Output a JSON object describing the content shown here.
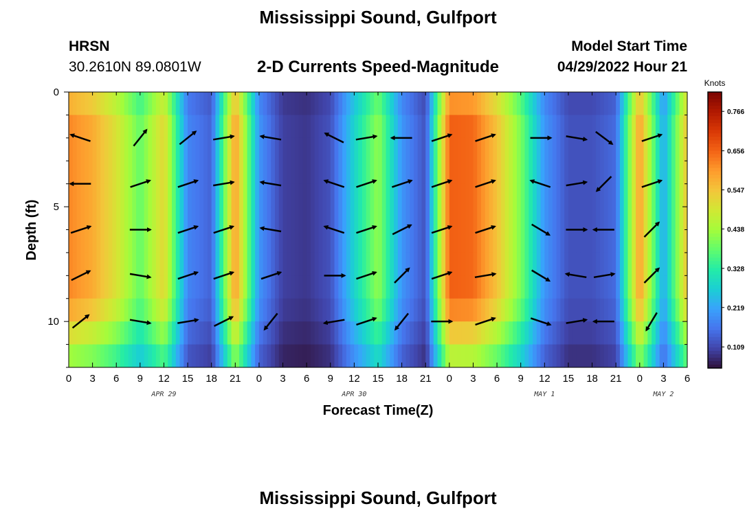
{
  "header": {
    "title": "Mississippi Sound, Gulfport",
    "station": "HRSN",
    "coords": "30.2610N  89.0801W",
    "subtitle": "2-D Currents Speed-Magnitude",
    "model_start_label": "Model Start Time",
    "model_start_value": "04/29/2022 Hour 21"
  },
  "footer": {
    "title": "Mississippi Sound, Gulfport"
  },
  "chart_data": {
    "type": "heatmap",
    "xlabel": "Forecast Time(Z)",
    "ylabel": "Depth (ft)",
    "x_range_hours": [
      0,
      78
    ],
    "y_range_ft": [
      0,
      12
    ],
    "x_tick_labels": [
      "0",
      "3",
      "6",
      "9",
      "12",
      "15",
      "18",
      "21",
      "0",
      "3",
      "6",
      "9",
      "12",
      "15",
      "18",
      "21",
      "0",
      "3",
      "6",
      "9",
      "12",
      "15",
      "18",
      "21",
      "0",
      "3",
      "6"
    ],
    "y_tick_labels": [
      "0",
      "5",
      "10"
    ],
    "y_tick_values": [
      0,
      5,
      10
    ],
    "date_labels": [
      {
        "text": "APR 29",
        "hour": 12
      },
      {
        "text": "APR 30",
        "hour": 36
      },
      {
        "text": "MAY 1",
        "hour": 60
      },
      {
        "text": "MAY 2",
        "hour": 75
      }
    ],
    "colorbar": {
      "unit": "Knots",
      "tick_labels": [
        "0.766",
        "0.656",
        "0.547",
        "0.438",
        "0.328",
        "0.219",
        "0.109"
      ],
      "tick_values": [
        0.766,
        0.656,
        0.547,
        0.438,
        0.328,
        0.219,
        0.109
      ],
      "min": 0.05,
      "max": 0.82,
      "colors": [
        "#30123b",
        "#4145ab",
        "#4675ed",
        "#39a2fc",
        "#1bcfd4",
        "#24eca6",
        "#61fc6c",
        "#a4fc3b",
        "#d1e834",
        "#f3c63a",
        "#fe9b2d",
        "#f36315",
        "#d93806",
        "#b11901",
        "#7a0402"
      ]
    },
    "hours": [
      0,
      3,
      6,
      9,
      12,
      15,
      18,
      21,
      24,
      27,
      30,
      33,
      36,
      39,
      42,
      45,
      48,
      51,
      54,
      57,
      60,
      63,
      66,
      69,
      72,
      75,
      78
    ],
    "time_speed_knots": [
      0.62,
      0.58,
      0.5,
      0.38,
      0.52,
      0.18,
      0.14,
      0.6,
      0.2,
      0.1,
      0.09,
      0.12,
      0.28,
      0.42,
      0.2,
      0.12,
      0.66,
      0.65,
      0.55,
      0.4,
      0.2,
      0.12,
      0.12,
      0.15,
      0.6,
      0.22,
      0.55
    ],
    "vector_depths_ft": [
      2,
      4,
      6,
      8,
      10
    ],
    "vector_hours": [
      1.5,
      9,
      15,
      19.5,
      25.5,
      33.5,
      37.5,
      42,
      47,
      52.5,
      59.5,
      64,
      67.5,
      73.5
    ],
    "vectors": [
      {
        "depth": 2,
        "hour": 1.5,
        "u": -0.6,
        "v": 0.2
      },
      {
        "depth": 2,
        "hour": 9,
        "u": 0.4,
        "v": 0.5
      },
      {
        "depth": 2,
        "hour": 15,
        "u": 0.5,
        "v": 0.4
      },
      {
        "depth": 2,
        "hour": 19.5,
        "u": 0.6,
        "v": 0.1
      },
      {
        "depth": 2,
        "hour": 25.5,
        "u": -0.6,
        "v": 0.1
      },
      {
        "depth": 2,
        "hour": 33.5,
        "u": -0.6,
        "v": 0.3
      },
      {
        "depth": 2,
        "hour": 37.5,
        "u": 0.6,
        "v": 0.1
      },
      {
        "depth": 2,
        "hour": 42,
        "u": -0.6,
        "v": 0.0
      },
      {
        "depth": 2,
        "hour": 47,
        "u": 0.6,
        "v": 0.2
      },
      {
        "depth": 2,
        "hour": 52.5,
        "u": 0.6,
        "v": 0.2
      },
      {
        "depth": 2,
        "hour": 59.5,
        "u": 0.6,
        "v": 0.0
      },
      {
        "depth": 2,
        "hour": 64,
        "u": 0.6,
        "v": -0.1
      },
      {
        "depth": 2,
        "hour": 67.5,
        "u": 0.4,
        "v": -0.3
      },
      {
        "depth": 2,
        "hour": 73.5,
        "u": 0.6,
        "v": 0.2
      },
      {
        "depth": 4,
        "hour": 1.5,
        "u": -0.6,
        "v": 0.0
      },
      {
        "depth": 4,
        "hour": 9,
        "u": 0.6,
        "v": 0.2
      },
      {
        "depth": 4,
        "hour": 15,
        "u": 0.6,
        "v": 0.2
      },
      {
        "depth": 4,
        "hour": 19.5,
        "u": 0.6,
        "v": 0.1
      },
      {
        "depth": 4,
        "hour": 25.5,
        "u": -0.6,
        "v": 0.1
      },
      {
        "depth": 4,
        "hour": 33.5,
        "u": -0.6,
        "v": 0.2
      },
      {
        "depth": 4,
        "hour": 37.5,
        "u": 0.6,
        "v": 0.2
      },
      {
        "depth": 4,
        "hour": 42,
        "u": 0.6,
        "v": 0.2
      },
      {
        "depth": 4,
        "hour": 47,
        "u": 0.6,
        "v": 0.2
      },
      {
        "depth": 4,
        "hour": 52.5,
        "u": 0.6,
        "v": 0.2
      },
      {
        "depth": 4,
        "hour": 59.5,
        "u": -0.6,
        "v": 0.2
      },
      {
        "depth": 4,
        "hour": 64,
        "u": 0.6,
        "v": 0.1
      },
      {
        "depth": 4,
        "hour": 67.5,
        "u": -0.4,
        "v": -0.4
      },
      {
        "depth": 4,
        "hour": 73.5,
        "u": 0.6,
        "v": 0.2
      },
      {
        "depth": 6,
        "hour": 1.5,
        "u": 0.6,
        "v": 0.2
      },
      {
        "depth": 6,
        "hour": 9,
        "u": 0.6,
        "v": 0.0
      },
      {
        "depth": 6,
        "hour": 15,
        "u": 0.6,
        "v": 0.2
      },
      {
        "depth": 6,
        "hour": 19.5,
        "u": 0.6,
        "v": 0.2
      },
      {
        "depth": 6,
        "hour": 25.5,
        "u": -0.6,
        "v": 0.1
      },
      {
        "depth": 6,
        "hour": 33.5,
        "u": -0.6,
        "v": 0.2
      },
      {
        "depth": 6,
        "hour": 37.5,
        "u": 0.6,
        "v": 0.2
      },
      {
        "depth": 6,
        "hour": 42,
        "u": 0.6,
        "v": 0.3
      },
      {
        "depth": 6,
        "hour": 47,
        "u": 0.6,
        "v": 0.2
      },
      {
        "depth": 6,
        "hour": 52.5,
        "u": 0.6,
        "v": 0.2
      },
      {
        "depth": 6,
        "hour": 59.5,
        "u": 0.5,
        "v": -0.3
      },
      {
        "depth": 6,
        "hour": 64,
        "u": 0.6,
        "v": 0.0
      },
      {
        "depth": 6,
        "hour": 67.5,
        "u": -0.6,
        "v": 0.0
      },
      {
        "depth": 6,
        "hour": 73.5,
        "u": 0.4,
        "v": 0.4
      },
      {
        "depth": 8,
        "hour": 1.5,
        "u": 0.6,
        "v": 0.3
      },
      {
        "depth": 8,
        "hour": 9,
        "u": 0.6,
        "v": -0.1
      },
      {
        "depth": 8,
        "hour": 15,
        "u": 0.6,
        "v": 0.2
      },
      {
        "depth": 8,
        "hour": 19.5,
        "u": 0.6,
        "v": 0.2
      },
      {
        "depth": 8,
        "hour": 25.5,
        "u": 0.6,
        "v": 0.2
      },
      {
        "depth": 8,
        "hour": 33.5,
        "u": 0.6,
        "v": 0.0
      },
      {
        "depth": 8,
        "hour": 37.5,
        "u": 0.6,
        "v": 0.2
      },
      {
        "depth": 8,
        "hour": 42,
        "u": 0.4,
        "v": 0.4
      },
      {
        "depth": 8,
        "hour": 47,
        "u": 0.6,
        "v": 0.2
      },
      {
        "depth": 8,
        "hour": 52.5,
        "u": 0.6,
        "v": 0.1
      },
      {
        "depth": 8,
        "hour": 59.5,
        "u": 0.5,
        "v": -0.3
      },
      {
        "depth": 8,
        "hour": 64,
        "u": -0.6,
        "v": 0.1
      },
      {
        "depth": 8,
        "hour": 67.5,
        "u": 0.6,
        "v": 0.1
      },
      {
        "depth": 8,
        "hour": 73.5,
        "u": 0.4,
        "v": 0.4
      },
      {
        "depth": 10,
        "hour": 1.5,
        "u": 0.5,
        "v": 0.4
      },
      {
        "depth": 10,
        "hour": 9,
        "u": 0.6,
        "v": -0.1
      },
      {
        "depth": 10,
        "hour": 15,
        "u": 0.6,
        "v": 0.1
      },
      {
        "depth": 10,
        "hour": 19.5,
        "u": 0.6,
        "v": 0.3
      },
      {
        "depth": 10,
        "hour": 25.5,
        "u": -0.4,
        "v": -0.5
      },
      {
        "depth": 10,
        "hour": 33.5,
        "u": -0.6,
        "v": -0.1
      },
      {
        "depth": 10,
        "hour": 37.5,
        "u": 0.6,
        "v": 0.2
      },
      {
        "depth": 10,
        "hour": 42,
        "u": -0.4,
        "v": -0.5
      },
      {
        "depth": 10,
        "hour": 47,
        "u": 0.6,
        "v": 0.0
      },
      {
        "depth": 10,
        "hour": 52.5,
        "u": 0.6,
        "v": 0.2
      },
      {
        "depth": 10,
        "hour": 59.5,
        "u": 0.6,
        "v": -0.2
      },
      {
        "depth": 10,
        "hour": 64,
        "u": 0.6,
        "v": 0.1
      },
      {
        "depth": 10,
        "hour": 67.5,
        "u": -0.6,
        "v": 0.0
      },
      {
        "depth": 10,
        "hour": 73.5,
        "u": -0.3,
        "v": -0.5
      }
    ]
  }
}
